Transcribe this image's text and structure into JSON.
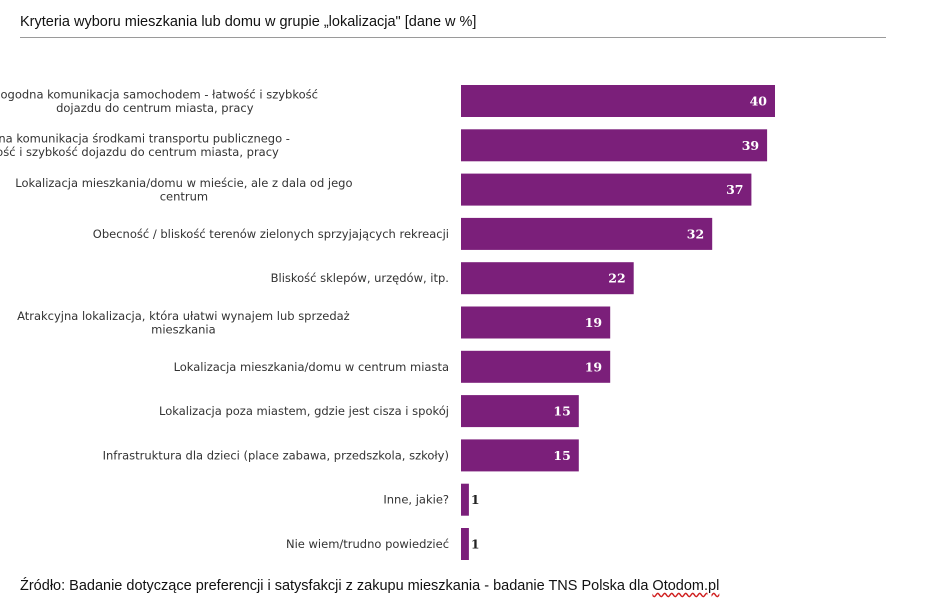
{
  "header": {
    "title": "Kryteria wyboru mieszkania lub domu w grupie „lokalizacja\" [dane w %]"
  },
  "footer": {
    "source_text": "Źródło: Badanie dotyczące preferencji i satysfakcji z zakupu mieszkania - badanie TNS Polska dla ",
    "source_link": "Otodom.pl"
  },
  "colors": {
    "bar": "#7b1f7a",
    "value_inside": "#ffffff",
    "value_outside": "#222222"
  },
  "chart_data": {
    "type": "bar",
    "orientation": "horizontal",
    "title": "Kryteria wyboru mieszkania lub domu w grupie „lokalizacja\" [dane w %]",
    "categories": [
      [
        "Dogodna komunikacja samochodem - łatwość i szybkość",
        "dojazdu do centrum miasta, pracy"
      ],
      [
        "Dogodna komunikacja środkami transportu publicznego  -",
        "łatwość i szybkość dojazdu do centrum miasta, pracy"
      ],
      [
        "Lokalizacja mieszkania/domu w mieście, ale z dala od jego",
        "centrum"
      ],
      [
        "Obecność / bliskość terenów zielonych sprzyjających rekreacji"
      ],
      [
        "Bliskość sklepów, urzędów, itp."
      ],
      [
        "Atrakcyjna lokalizacja, która ułatwi wynajem lub sprzedaż",
        "mieszkania"
      ],
      [
        "Lokalizacja mieszkania/domu w centrum miasta"
      ],
      [
        "Lokalizacja poza miastem, gdzie jest cisza i spokój"
      ],
      [
        "Infrastruktura dla dzieci (place zabawa, przedszkola, szkoły)"
      ],
      [
        "Inne, jakie?"
      ],
      [
        "Nie wiem/trudno powiedzieć"
      ]
    ],
    "values": [
      40,
      39,
      37,
      32,
      22,
      19,
      19,
      15,
      15,
      1,
      1
    ],
    "xlim": [
      0,
      40
    ],
    "unit": "%",
    "grid": false,
    "legend": "none"
  }
}
